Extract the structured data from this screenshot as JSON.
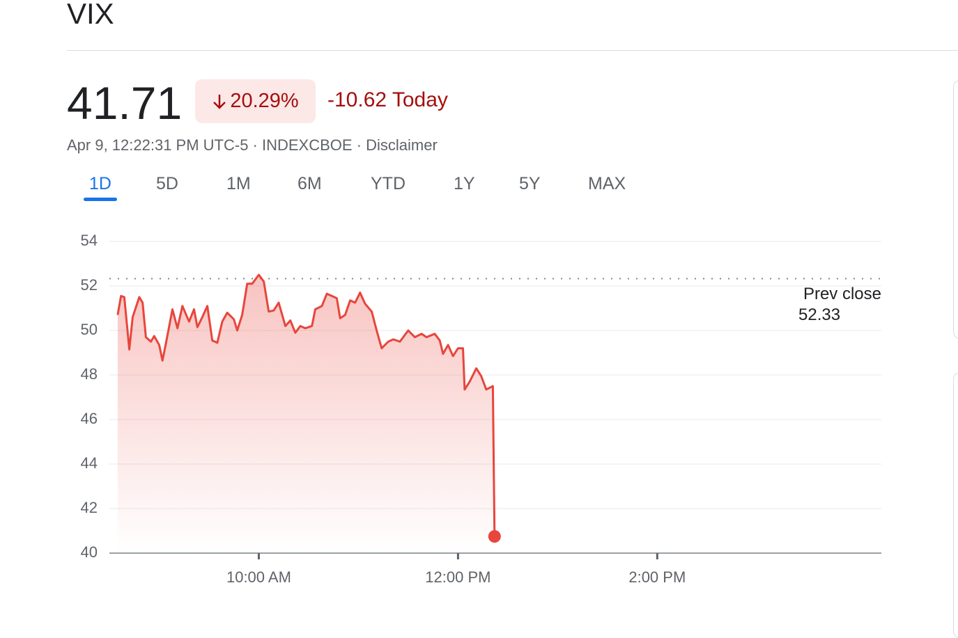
{
  "header": {
    "title": "VIX",
    "price": "41.71",
    "change_percent": "20.29%",
    "change_today": "-10.62 Today",
    "meta": "Apr 9, 12:22:31 PM UTC-5 · INDEXCBOE · Disclaimer"
  },
  "tabs": [
    "1D",
    "5D",
    "1M",
    "6M",
    "YTD",
    "1Y",
    "5Y",
    "MAX"
  ],
  "chart_data": {
    "type": "line",
    "x": [
      515,
      517,
      519,
      522,
      524,
      528,
      530,
      532,
      535,
      537,
      540,
      542,
      544,
      548,
      551,
      554,
      558,
      561,
      563,
      566,
      569,
      572,
      575,
      578,
      581,
      585,
      587,
      590,
      593,
      596,
      600,
      603,
      606,
      609,
      612,
      616,
      619,
      622,
      625,
      628,
      632,
      634,
      638,
      641,
      644,
      647,
      649,
      652,
      655,
      658,
      661,
      664,
      668,
      671,
      674,
      678,
      681,
      685,
      690,
      694,
      698,
      701,
      706,
      709,
      711,
      714,
      717,
      720,
      723,
      724,
      727,
      731,
      734,
      737,
      741,
      742
    ],
    "series": [
      {
        "color": "#e8453c",
        "values": [
          50.7,
          51.55,
          51.5,
          49.15,
          50.6,
          51.5,
          51.25,
          49.7,
          49.5,
          49.75,
          49.35,
          48.65,
          49.4,
          50.95,
          50.1,
          51.1,
          50.4,
          50.95,
          50.15,
          50.6,
          51.1,
          49.55,
          49.45,
          50.4,
          50.8,
          50.5,
          50.0,
          50.7,
          52.1,
          52.1,
          52.5,
          52.2,
          50.85,
          50.9,
          51.25,
          50.2,
          50.45,
          49.9,
          50.2,
          50.1,
          50.2,
          50.95,
          51.1,
          51.65,
          51.55,
          51.45,
          50.55,
          50.7,
          51.35,
          51.25,
          51.7,
          51.2,
          50.85,
          50.0,
          49.2,
          49.5,
          49.6,
          49.5,
          50.0,
          49.7,
          49.85,
          49.7,
          49.85,
          49.55,
          48.95,
          49.35,
          48.85,
          49.2,
          49.2,
          47.35,
          47.7,
          48.3,
          47.95,
          47.35,
          47.5,
          40.75
        ]
      }
    ],
    "xlim": [
      510,
      975
    ],
    "xticks": [
      {
        "value": 600,
        "label": "10:00 AM"
      },
      {
        "value": 720,
        "label": "12:00 PM"
      },
      {
        "value": 840,
        "label": "2:00 PM"
      }
    ],
    "ylim": [
      40,
      54
    ],
    "yticks": [
      40,
      42,
      44,
      46,
      48,
      50,
      52,
      54
    ],
    "grid": true,
    "prev_close_label": "Prev close",
    "prev_close": 52.33
  }
}
